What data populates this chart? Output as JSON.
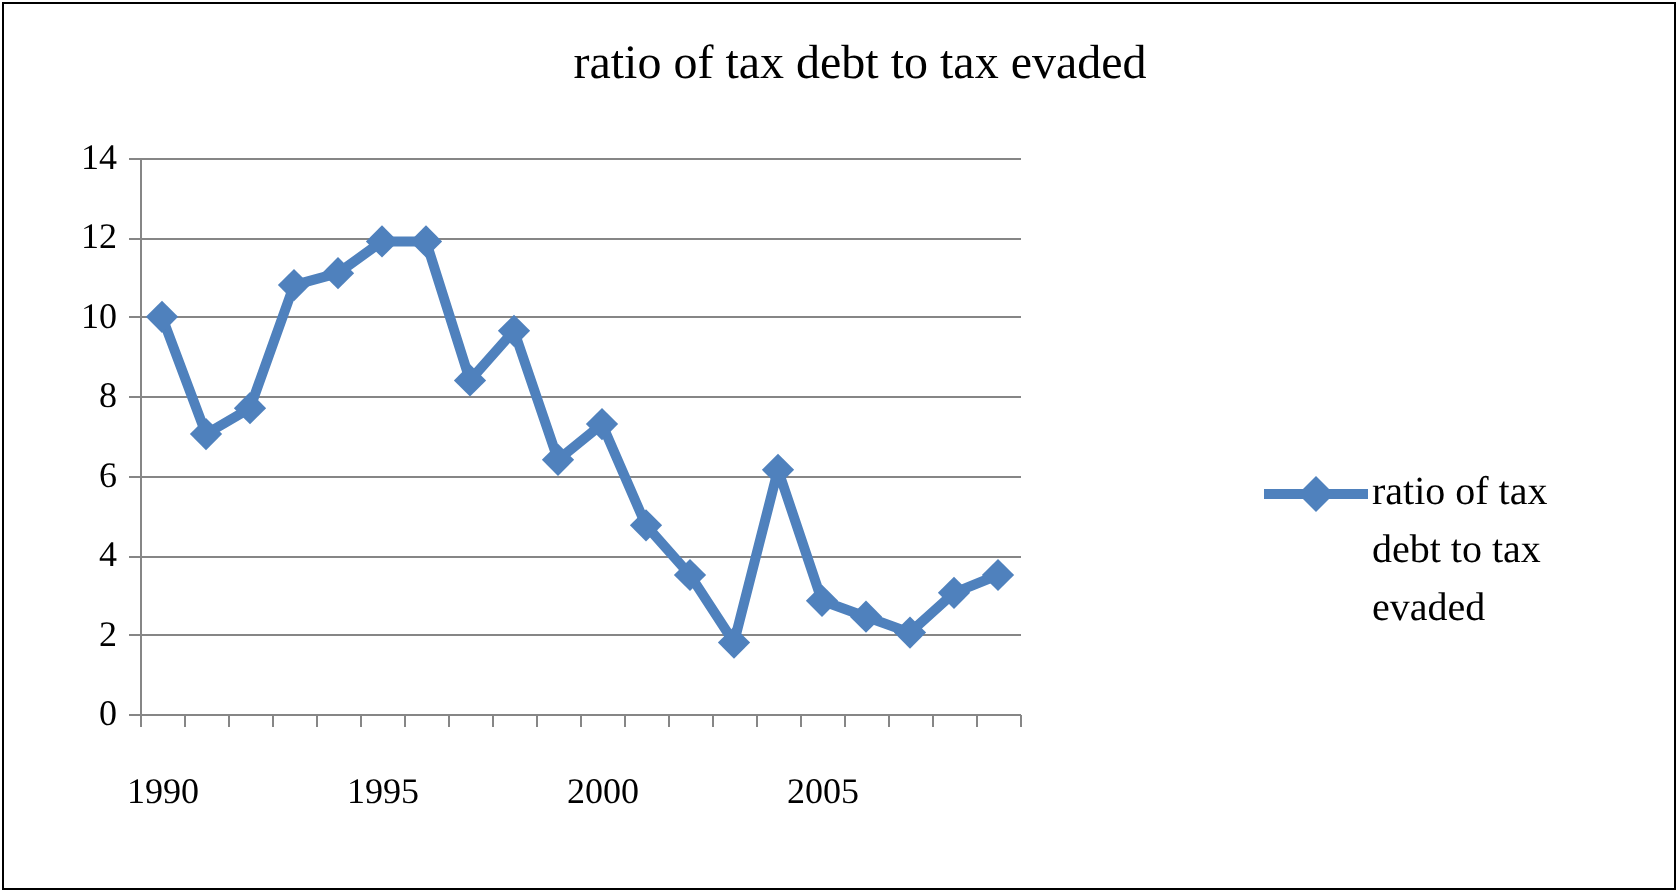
{
  "chart_data": {
    "type": "line",
    "title": "ratio of tax debt to tax evaded",
    "categories": [
      "1990",
      null,
      null,
      null,
      null,
      "1995",
      null,
      null,
      null,
      null,
      "2000",
      null,
      null,
      null,
      null,
      "2005",
      null,
      null,
      null,
      null
    ],
    "series": [
      {
        "name": "ratio of tax debt to tax evaded",
        "color": "#4f81bd",
        "values": [
          10.0,
          7.05,
          7.7,
          10.8,
          11.1,
          11.9,
          11.9,
          8.4,
          9.65,
          6.4,
          7.3,
          4.75,
          3.5,
          1.8,
          6.15,
          2.85,
          2.45,
          2.05,
          3.05,
          3.5
        ]
      }
    ],
    "ylim": [
      0,
      14
    ],
    "yticks": [
      0,
      2,
      4,
      6,
      8,
      10,
      12,
      14
    ],
    "grid": "y",
    "legend": "right",
    "marker": "diamond",
    "line_style": "solid"
  }
}
